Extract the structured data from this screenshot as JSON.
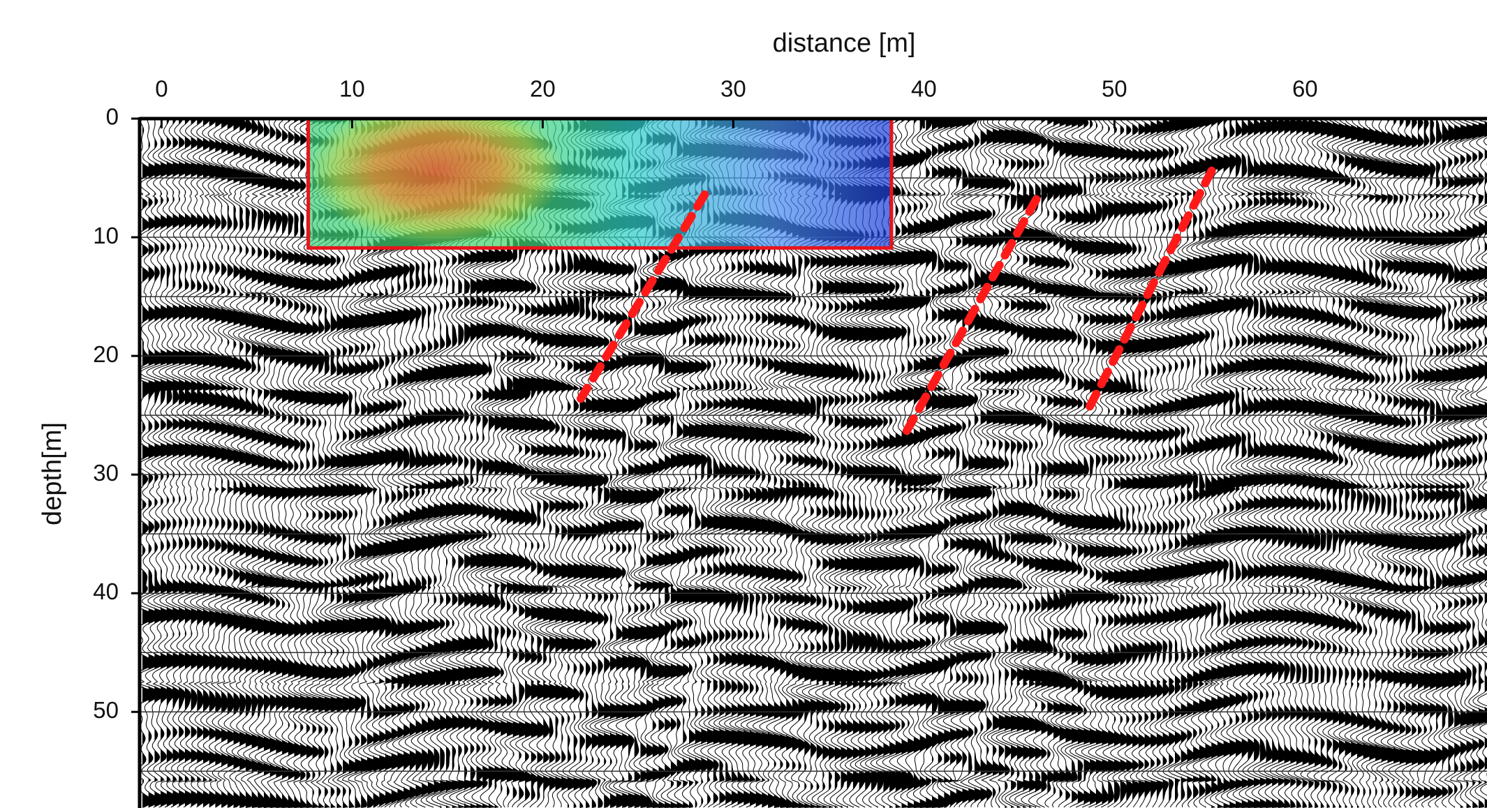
{
  "chart_data": {
    "type": "seismic-section",
    "x_label": "distance [m]",
    "y_label": "depth[m]",
    "xlim": [
      -1.15,
      69.55
    ],
    "ylim": [
      0,
      58.1
    ],
    "y_inverted": true,
    "xticks": [
      0,
      10,
      20,
      30,
      40,
      50,
      60
    ],
    "yticks": [
      0,
      10,
      20,
      30,
      40,
      50
    ],
    "grid_y": [
      5,
      10,
      15,
      20,
      25,
      30,
      35,
      40,
      45,
      50,
      55
    ],
    "trace_color": "#000000",
    "highlight_box": {
      "x": [
        7.7,
        38.3
      ],
      "y": [
        0,
        10.9
      ],
      "color": "#e8141c"
    },
    "fault_lines": [
      {
        "x": [
          28.5,
          22.0
        ],
        "y": [
          6.4,
          23.6
        ],
        "color": "#ff1a1a"
      },
      {
        "x": [
          45.9,
          38.9
        ],
        "y": [
          6.8,
          26.9
        ],
        "color": "#ff1a1a"
      },
      {
        "x": [
          55.1,
          48.5
        ],
        "y": [
          4.4,
          24.9
        ],
        "color": "#ff1a1a"
      }
    ]
  }
}
